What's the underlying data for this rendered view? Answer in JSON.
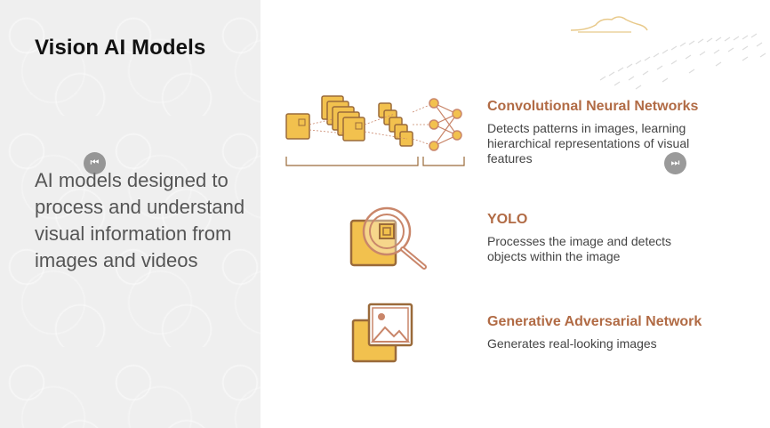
{
  "slide": {
    "title": "Vision AI Models",
    "subtitle": "AI models designed to process and understand visual information from images and videos"
  },
  "models": [
    {
      "title": "Convolutional Neural Networks",
      "description": "Detects patterns in images, learning hierarchical representations of visual features",
      "icon": "cnn-layers-icon"
    },
    {
      "title": "YOLO",
      "description": "Processes the image and detects objects within the image",
      "icon": "magnifier-image-icon"
    },
    {
      "title": "Generative Adversarial Network",
      "description": "Generates real-looking images",
      "icon": "picture-stack-icon"
    }
  ],
  "navigation": {
    "prev_glyph": "⏮",
    "next_glyph": "⏭"
  },
  "colors": {
    "accent": "#b16b45",
    "icon_fill": "#f2c14e",
    "icon_stroke": "#9a6a3a"
  }
}
